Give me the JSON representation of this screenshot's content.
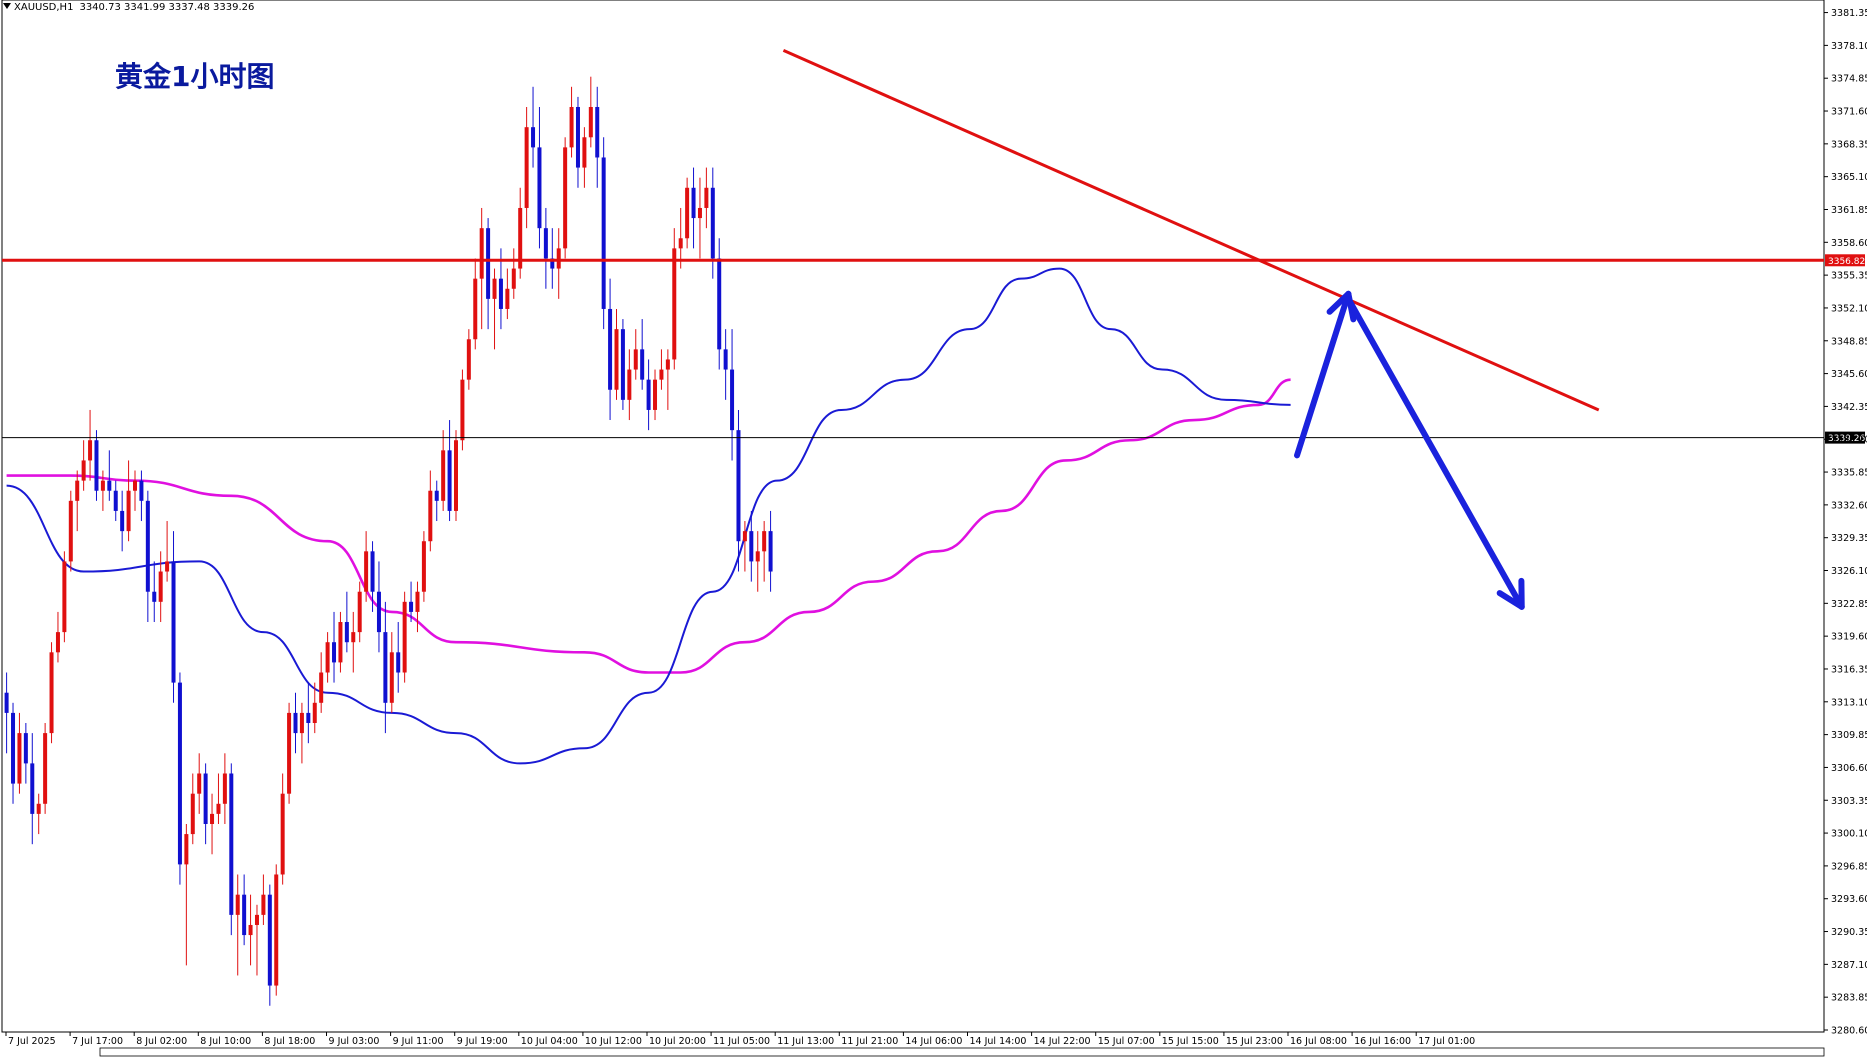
{
  "header": {
    "symbol": "XAUUSD,H1",
    "ohlc": "3340.73 3341.99 3337.48 3339.26"
  },
  "chart_title": "黄金1小时图",
  "colors": {
    "bull": "#e01010",
    "bear": "#1010d0",
    "ma_fast": "#1a1ad4",
    "ma_slow": "#e010e0",
    "resistance": "#e01010",
    "trendline": "#e01010",
    "arrow": "#1a22dd",
    "current_price_line": "#000000",
    "current_price_tag_bg": "#000000",
    "resistance_tag_bg": "#e01010"
  },
  "chart_data": {
    "type": "candlestick",
    "symbol": "XAUUSD",
    "timeframe": "H1",
    "ylim": [
      3280.6,
      3382.0
    ],
    "y_ticks": [
      "3381.35",
      "3378.10",
      "3374.85",
      "3371.60",
      "3368.35",
      "3365.10",
      "3361.85",
      "3358.60",
      "3355.35",
      "3352.10",
      "3348.85",
      "3345.60",
      "3342.35",
      "3339.10",
      "3335.85",
      "3332.60",
      "3329.35",
      "3326.10",
      "3322.85",
      "3319.60",
      "3316.35",
      "3313.10",
      "3309.85",
      "3306.60",
      "3303.35",
      "3300.10",
      "3296.85",
      "3293.60",
      "3290.35",
      "3287.10",
      "3283.85",
      "3280.60"
    ],
    "x_ticks": [
      "7 Jul 2025",
      "7 Jul 17:00",
      "8 Jul 02:00",
      "8 Jul 10:00",
      "8 Jul 18:00",
      "9 Jul 03:00",
      "9 Jul 11:00",
      "9 Jul 19:00",
      "10 Jul 04:00",
      "10 Jul 12:00",
      "10 Jul 20:00",
      "11 Jul 05:00",
      "11 Jul 13:00",
      "11 Jul 21:00",
      "14 Jul 06:00",
      "14 Jul 14:00",
      "14 Jul 22:00",
      "15 Jul 07:00",
      "15 Jul 15:00",
      "15 Jul 23:00",
      "16 Jul 08:00",
      "16 Jul 16:00",
      "17 Jul 01:00"
    ],
    "horizontal_lines": [
      {
        "name": "resistance",
        "price": 3356.82,
        "label": "3356.82"
      },
      {
        "name": "current",
        "price": 3339.26,
        "label": "3339.26"
      }
    ],
    "trendline": {
      "from_bar": 121,
      "from_price": 3377.6,
      "to_bar": 248,
      "to_price": 3342.0
    },
    "arrow_up": {
      "from_bar": 201,
      "from_price": 3337.5,
      "to_bar": 209,
      "to_price": 3353.5
    },
    "arrow_down": {
      "from_bar": 209,
      "from_price": 3353.0,
      "to_bar": 236,
      "to_price": 3322.5
    },
    "ma_fast_anchors": [
      [
        0,
        3334.5
      ],
      [
        12,
        3326
      ],
      [
        30,
        3327
      ],
      [
        40,
        3320
      ],
      [
        50,
        3314
      ],
      [
        60,
        3312
      ],
      [
        70,
        3310
      ],
      [
        80,
        3307
      ],
      [
        90,
        3308.5
      ],
      [
        100,
        3314
      ],
      [
        110,
        3324
      ],
      [
        120,
        3335
      ],
      [
        130,
        3342
      ],
      [
        140,
        3345
      ],
      [
        150,
        3350
      ],
      [
        158,
        3355
      ],
      [
        164,
        3356
      ],
      [
        172,
        3350
      ],
      [
        180,
        3346
      ],
      [
        190,
        3343
      ],
      [
        200,
        3342.5
      ]
    ],
    "ma_slow_anchors": [
      [
        0,
        3335.5
      ],
      [
        10,
        3335.5
      ],
      [
        20,
        3335
      ],
      [
        35,
        3333.5
      ],
      [
        50,
        3329
      ],
      [
        60,
        3322
      ],
      [
        70,
        3319
      ],
      [
        90,
        3318
      ],
      [
        100,
        3316
      ],
      [
        105,
        3316
      ],
      [
        115,
        3319
      ],
      [
        125,
        3322
      ],
      [
        135,
        3325
      ],
      [
        145,
        3328
      ],
      [
        155,
        3332
      ],
      [
        165,
        3337
      ],
      [
        175,
        3339
      ],
      [
        185,
        3341
      ],
      [
        195,
        3342.5
      ],
      [
        200,
        3345
      ]
    ],
    "ohlc": [
      [
        3314,
        3316,
        3308,
        3312
      ],
      [
        3312,
        3313,
        3303,
        3305
      ],
      [
        3305,
        3312,
        3304,
        3310
      ],
      [
        3310,
        3311,
        3305,
        3307
      ],
      [
        3307,
        3310,
        3299,
        3302
      ],
      [
        3302,
        3304,
        3300,
        3303
      ],
      [
        3303,
        3311,
        3302,
        3310
      ],
      [
        3310,
        3319,
        3309,
        3318
      ],
      [
        3318,
        3322,
        3317,
        3320
      ],
      [
        3320,
        3328,
        3319,
        3327
      ],
      [
        3327,
        3334,
        3326,
        3333
      ],
      [
        3333,
        3336,
        3330,
        3335
      ],
      [
        3335,
        3339,
        3334,
        3337
      ],
      [
        3337,
        3342,
        3335,
        3339
      ],
      [
        3339,
        3340,
        3333,
        3334
      ],
      [
        3334,
        3336,
        3332,
        3335
      ],
      [
        3335,
        3338,
        3333,
        3334
      ],
      [
        3334,
        3335,
        3331,
        3332
      ],
      [
        3332,
        3334,
        3328,
        3330
      ],
      [
        3330,
        3337,
        3329,
        3334
      ],
      [
        3334,
        3336,
        3332,
        3335
      ],
      [
        3335,
        3336,
        3331,
        3333
      ],
      [
        3333,
        3334,
        3321,
        3324
      ],
      [
        3324,
        3327,
        3321,
        3323
      ],
      [
        3323,
        3328,
        3321,
        3326
      ],
      [
        3326,
        3331,
        3325,
        3327
      ],
      [
        3327,
        3330,
        3313,
        3315
      ],
      [
        3315,
        3316,
        3295,
        3297
      ],
      [
        3297,
        3301,
        3287,
        3300
      ],
      [
        3300,
        3306,
        3299,
        3304
      ],
      [
        3304,
        3308,
        3302,
        3306
      ],
      [
        3306,
        3307,
        3299,
        3301
      ],
      [
        3301,
        3304,
        3298,
        3302
      ],
      [
        3302,
        3306,
        3301,
        3303
      ],
      [
        3303,
        3308,
        3301,
        3306
      ],
      [
        3306,
        3307,
        3290,
        3292
      ],
      [
        3292,
        3296,
        3286,
        3294
      ],
      [
        3294,
        3296,
        3289,
        3290
      ],
      [
        3290,
        3294,
        3287,
        3291
      ],
      [
        3291,
        3293,
        3286,
        3292
      ],
      [
        3292,
        3296,
        3291,
        3294
      ],
      [
        3294,
        3295,
        3283,
        3285
      ],
      [
        3285,
        3297,
        3284,
        3296
      ],
      [
        3296,
        3306,
        3295,
        3304
      ],
      [
        3304,
        3313,
        3303,
        3312
      ],
      [
        3312,
        3314,
        3308,
        3310
      ],
      [
        3310,
        3313,
        3307,
        3312
      ],
      [
        3312,
        3315,
        3309,
        3311
      ],
      [
        3311,
        3315,
        3310,
        3313
      ],
      [
        3313,
        3318,
        3312,
        3316
      ],
      [
        3316,
        3320,
        3315,
        3319
      ],
      [
        3319,
        3322,
        3315,
        3317
      ],
      [
        3317,
        3322,
        3316,
        3321
      ],
      [
        3321,
        3324,
        3318,
        3319
      ],
      [
        3319,
        3322,
        3316,
        3320
      ],
      [
        3320,
        3325,
        3319,
        3324
      ],
      [
        3324,
        3330,
        3323,
        3328
      ],
      [
        3328,
        3329,
        3322,
        3324
      ],
      [
        3324,
        3327,
        3318,
        3320
      ],
      [
        3320,
        3323,
        3310,
        3313
      ],
      [
        3313,
        3320,
        3312,
        3318
      ],
      [
        3318,
        3321,
        3314,
        3316
      ],
      [
        3316,
        3324,
        3315,
        3323
      ],
      [
        3323,
        3325,
        3321,
        3322
      ],
      [
        3322,
        3325,
        3320,
        3324
      ],
      [
        3324,
        3330,
        3323,
        3329
      ],
      [
        3329,
        3336,
        3328,
        3334
      ],
      [
        3334,
        3335,
        3331,
        3333
      ],
      [
        3333,
        3340,
        3332,
        3338
      ],
      [
        3338,
        3341,
        3331,
        3332
      ],
      [
        3332,
        3340,
        3331,
        3339
      ],
      [
        3339,
        3346,
        3338,
        3345
      ],
      [
        3345,
        3350,
        3344,
        3349
      ],
      [
        3349,
        3357,
        3348,
        3355
      ],
      [
        3355,
        3362,
        3350,
        3360
      ],
      [
        3360,
        3361,
        3350,
        3353
      ],
      [
        3353,
        3356,
        3348,
        3355
      ],
      [
        3355,
        3358,
        3350,
        3352
      ],
      [
        3352,
        3356,
        3351,
        3354
      ],
      [
        3354,
        3358,
        3353,
        3356
      ],
      [
        3356,
        3364,
        3355,
        3362
      ],
      [
        3362,
        3372,
        3360,
        3370
      ],
      [
        3370,
        3374,
        3366,
        3368
      ],
      [
        3368,
        3372,
        3358,
        3360
      ],
      [
        3360,
        3362,
        3354,
        3357
      ],
      [
        3357,
        3360,
        3354,
        3356
      ],
      [
        3356,
        3360,
        3353,
        3358
      ],
      [
        3358,
        3369,
        3357,
        3368
      ],
      [
        3368,
        3374,
        3367,
        3372
      ],
      [
        3372,
        3373,
        3364,
        3366
      ],
      [
        3366,
        3370,
        3364,
        3369
      ],
      [
        3369,
        3375,
        3368,
        3372
      ],
      [
        3372,
        3374,
        3364,
        3367
      ],
      [
        3367,
        3369,
        3350,
        3352
      ],
      [
        3352,
        3355,
        3341,
        3344
      ],
      [
        3344,
        3352,
        3343,
        3350
      ],
      [
        3350,
        3351,
        3342,
        3343
      ],
      [
        3343,
        3348,
        3341,
        3346
      ],
      [
        3346,
        3350,
        3345,
        3348
      ],
      [
        3348,
        3351,
        3344,
        3345
      ],
      [
        3345,
        3347,
        3340,
        3342
      ],
      [
        3342,
        3346,
        3341,
        3345
      ],
      [
        3345,
        3348,
        3344,
        3346
      ],
      [
        3346,
        3348,
        3342,
        3347
      ],
      [
        3347,
        3360,
        3346,
        3358
      ],
      [
        3358,
        3362,
        3356,
        3359
      ],
      [
        3359,
        3365,
        3358,
        3364
      ],
      [
        3364,
        3366,
        3358,
        3361
      ],
      [
        3361,
        3365,
        3357,
        3362
      ],
      [
        3362,
        3366,
        3360,
        3364
      ],
      [
        3364,
        3366,
        3355,
        3357
      ],
      [
        3357,
        3359,
        3346,
        3348
      ],
      [
        3348,
        3350,
        3343,
        3346
      ],
      [
        3346,
        3350,
        3337,
        3340
      ],
      [
        3340,
        3342,
        3326,
        3329
      ],
      [
        3329,
        3331,
        3326,
        3330
      ],
      [
        3330,
        3332,
        3325,
        3327
      ],
      [
        3327,
        3330,
        3324,
        3328
      ],
      [
        3328,
        3331,
        3325,
        3330
      ],
      [
        3330,
        3332,
        3324,
        3326
      ]
    ]
  }
}
